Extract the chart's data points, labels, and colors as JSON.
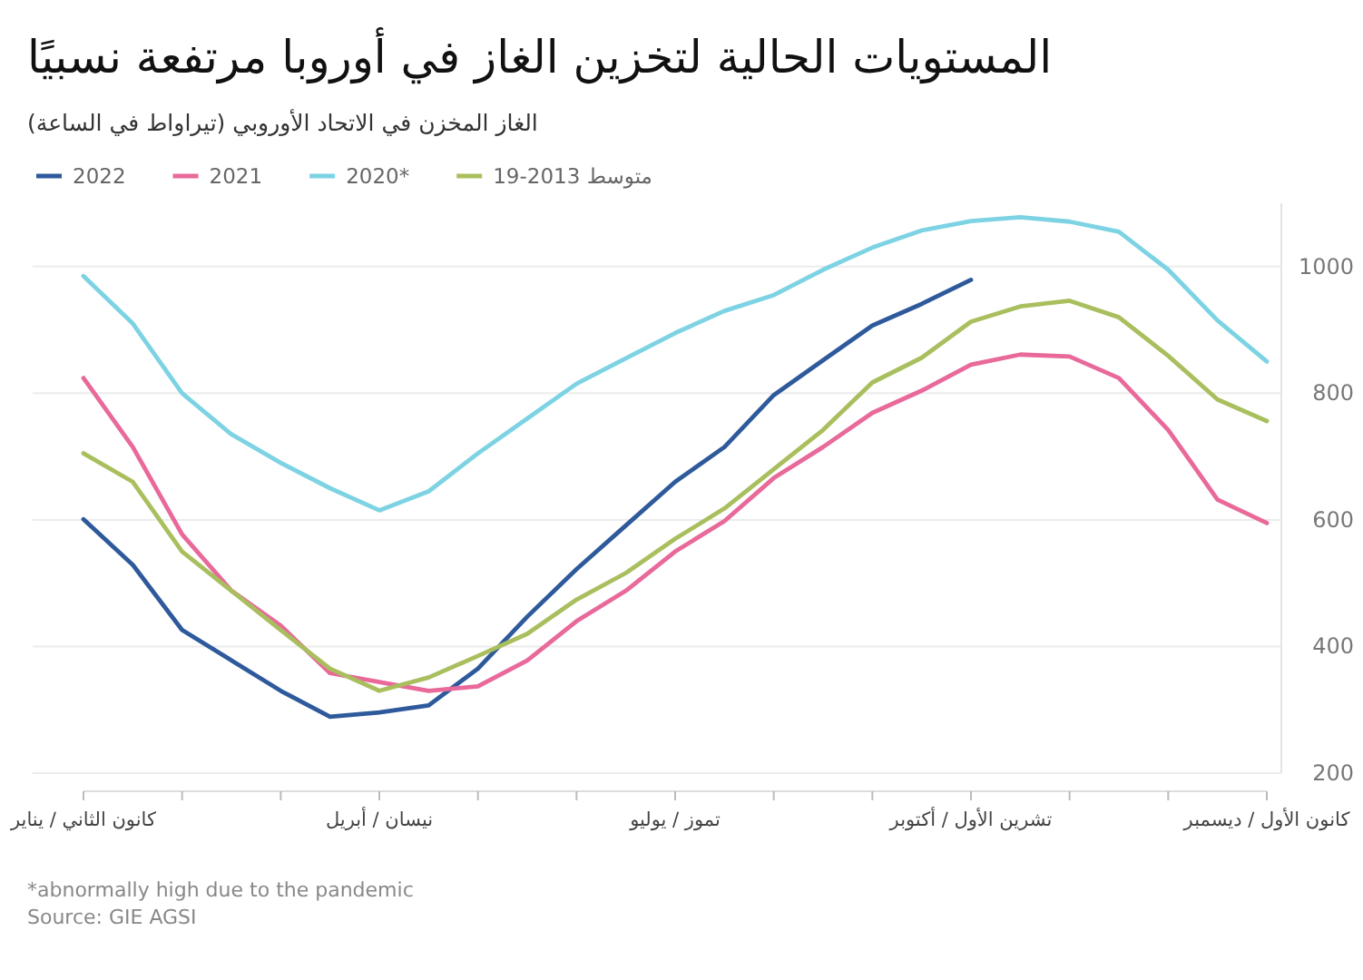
{
  "chart_data": {
    "type": "line",
    "title": "المستويات الحالية لتخزين الغاز في أوروبا مرتفعة نسبيًا",
    "subtitle": "الغاز المخزن في الاتحاد الأوروبي (تيراواط في الساعة)",
    "categories": [
      "كانون الثاني / يناير",
      null,
      null,
      null,
      null,
      null,
      "نيسان / أبريل",
      null,
      null,
      null,
      null,
      null,
      "تموز / يوليو",
      null,
      null,
      null,
      null,
      null,
      "تشرين الأول / أكتوبر",
      null,
      null,
      null,
      null,
      null,
      "كانون الأول / ديسمبر"
    ],
    "series": [
      {
        "name": "2022",
        "color": "#2e5a9c",
        "values": [
          601,
          529,
          426,
          378,
          330,
          289,
          296,
          307,
          365,
          447,
          522,
          591,
          660,
          715,
          797,
          852,
          907,
          941,
          979,
          null,
          null,
          null,
          null,
          null,
          null
        ]
      },
      {
        "name": "2021",
        "color": "#e8699a",
        "values": [
          824,
          715,
          577,
          488,
          433,
          358,
          344,
          330,
          337,
          378,
          440,
          488,
          550,
          598,
          666,
          715,
          769,
          804,
          845,
          861,
          858,
          824,
          742,
          632,
          595
        ]
      },
      {
        "name": "2020*",
        "color": "#7dd3e3",
        "values": [
          985,
          910,
          800,
          735,
          690,
          650,
          615,
          645,
          705,
          760,
          815,
          855,
          895,
          930,
          955,
          995,
          1030,
          1057,
          1072,
          1078,
          1071,
          1055,
          995,
          915,
          850
        ]
      },
      {
        "name": "متوسط 2013-19",
        "color": "#a9bf5e",
        "values": [
          705,
          660,
          550,
          488,
          426,
          365,
          330,
          351,
          385,
          420,
          474,
          516,
          570,
          618,
          680,
          742,
          817,
          856,
          913,
          937,
          946,
          920,
          859,
          790,
          756
        ]
      }
    ],
    "ylim": [
      200,
      1100
    ],
    "yticks": [
      200,
      400,
      600,
      800,
      1000
    ],
    "grid": "y",
    "legend": "top left",
    "annotations": [
      "*abnormally high due to the pandemic",
      "Source: GIE AGSI"
    ]
  }
}
